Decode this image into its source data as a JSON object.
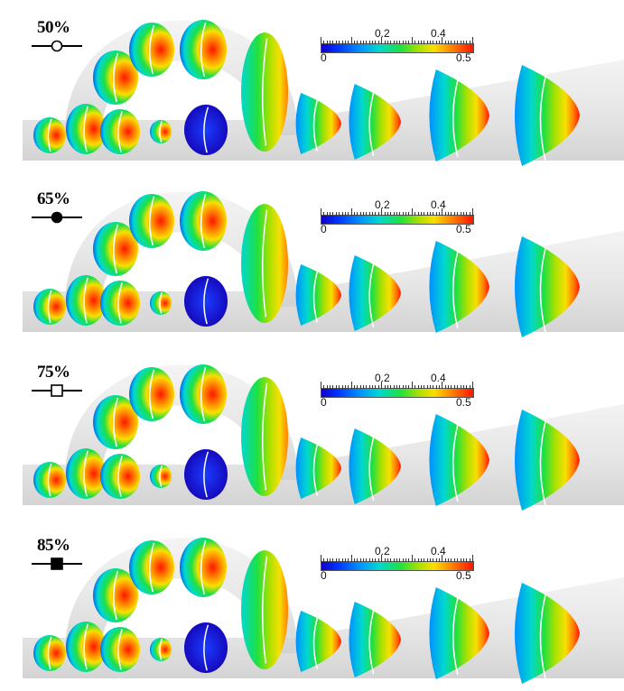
{
  "panels": [
    {
      "label": "50%",
      "marker": "open-circle",
      "colorbar": {
        "top_labels": [
          "0.2",
          "0.4"
        ],
        "bottom_labels": [
          "0",
          "0.5"
        ]
      }
    },
    {
      "label": "65%",
      "marker": "filled-circle",
      "colorbar": {
        "top_labels": [
          "0.2",
          "0.4"
        ],
        "bottom_labels": [
          "0",
          "0.5"
        ]
      }
    },
    {
      "label": "75%",
      "marker": "open-square",
      "colorbar": {
        "top_labels": [
          "0.2",
          "0.4"
        ],
        "bottom_labels": [
          "0",
          "0.5"
        ]
      }
    },
    {
      "label": "85%",
      "marker": "filled-square",
      "colorbar": {
        "top_labels": [
          "0.2",
          "0.4"
        ],
        "bottom_labels": [
          "0",
          "0.5"
        ]
      }
    }
  ],
  "colormap": [
    "#1300c8",
    "#0030ff",
    "#0090ff",
    "#00d8d0",
    "#20e040",
    "#a8e000",
    "#f8e000",
    "#ff8000",
    "#ff1400"
  ],
  "tube_color": "#e4e4e4"
}
